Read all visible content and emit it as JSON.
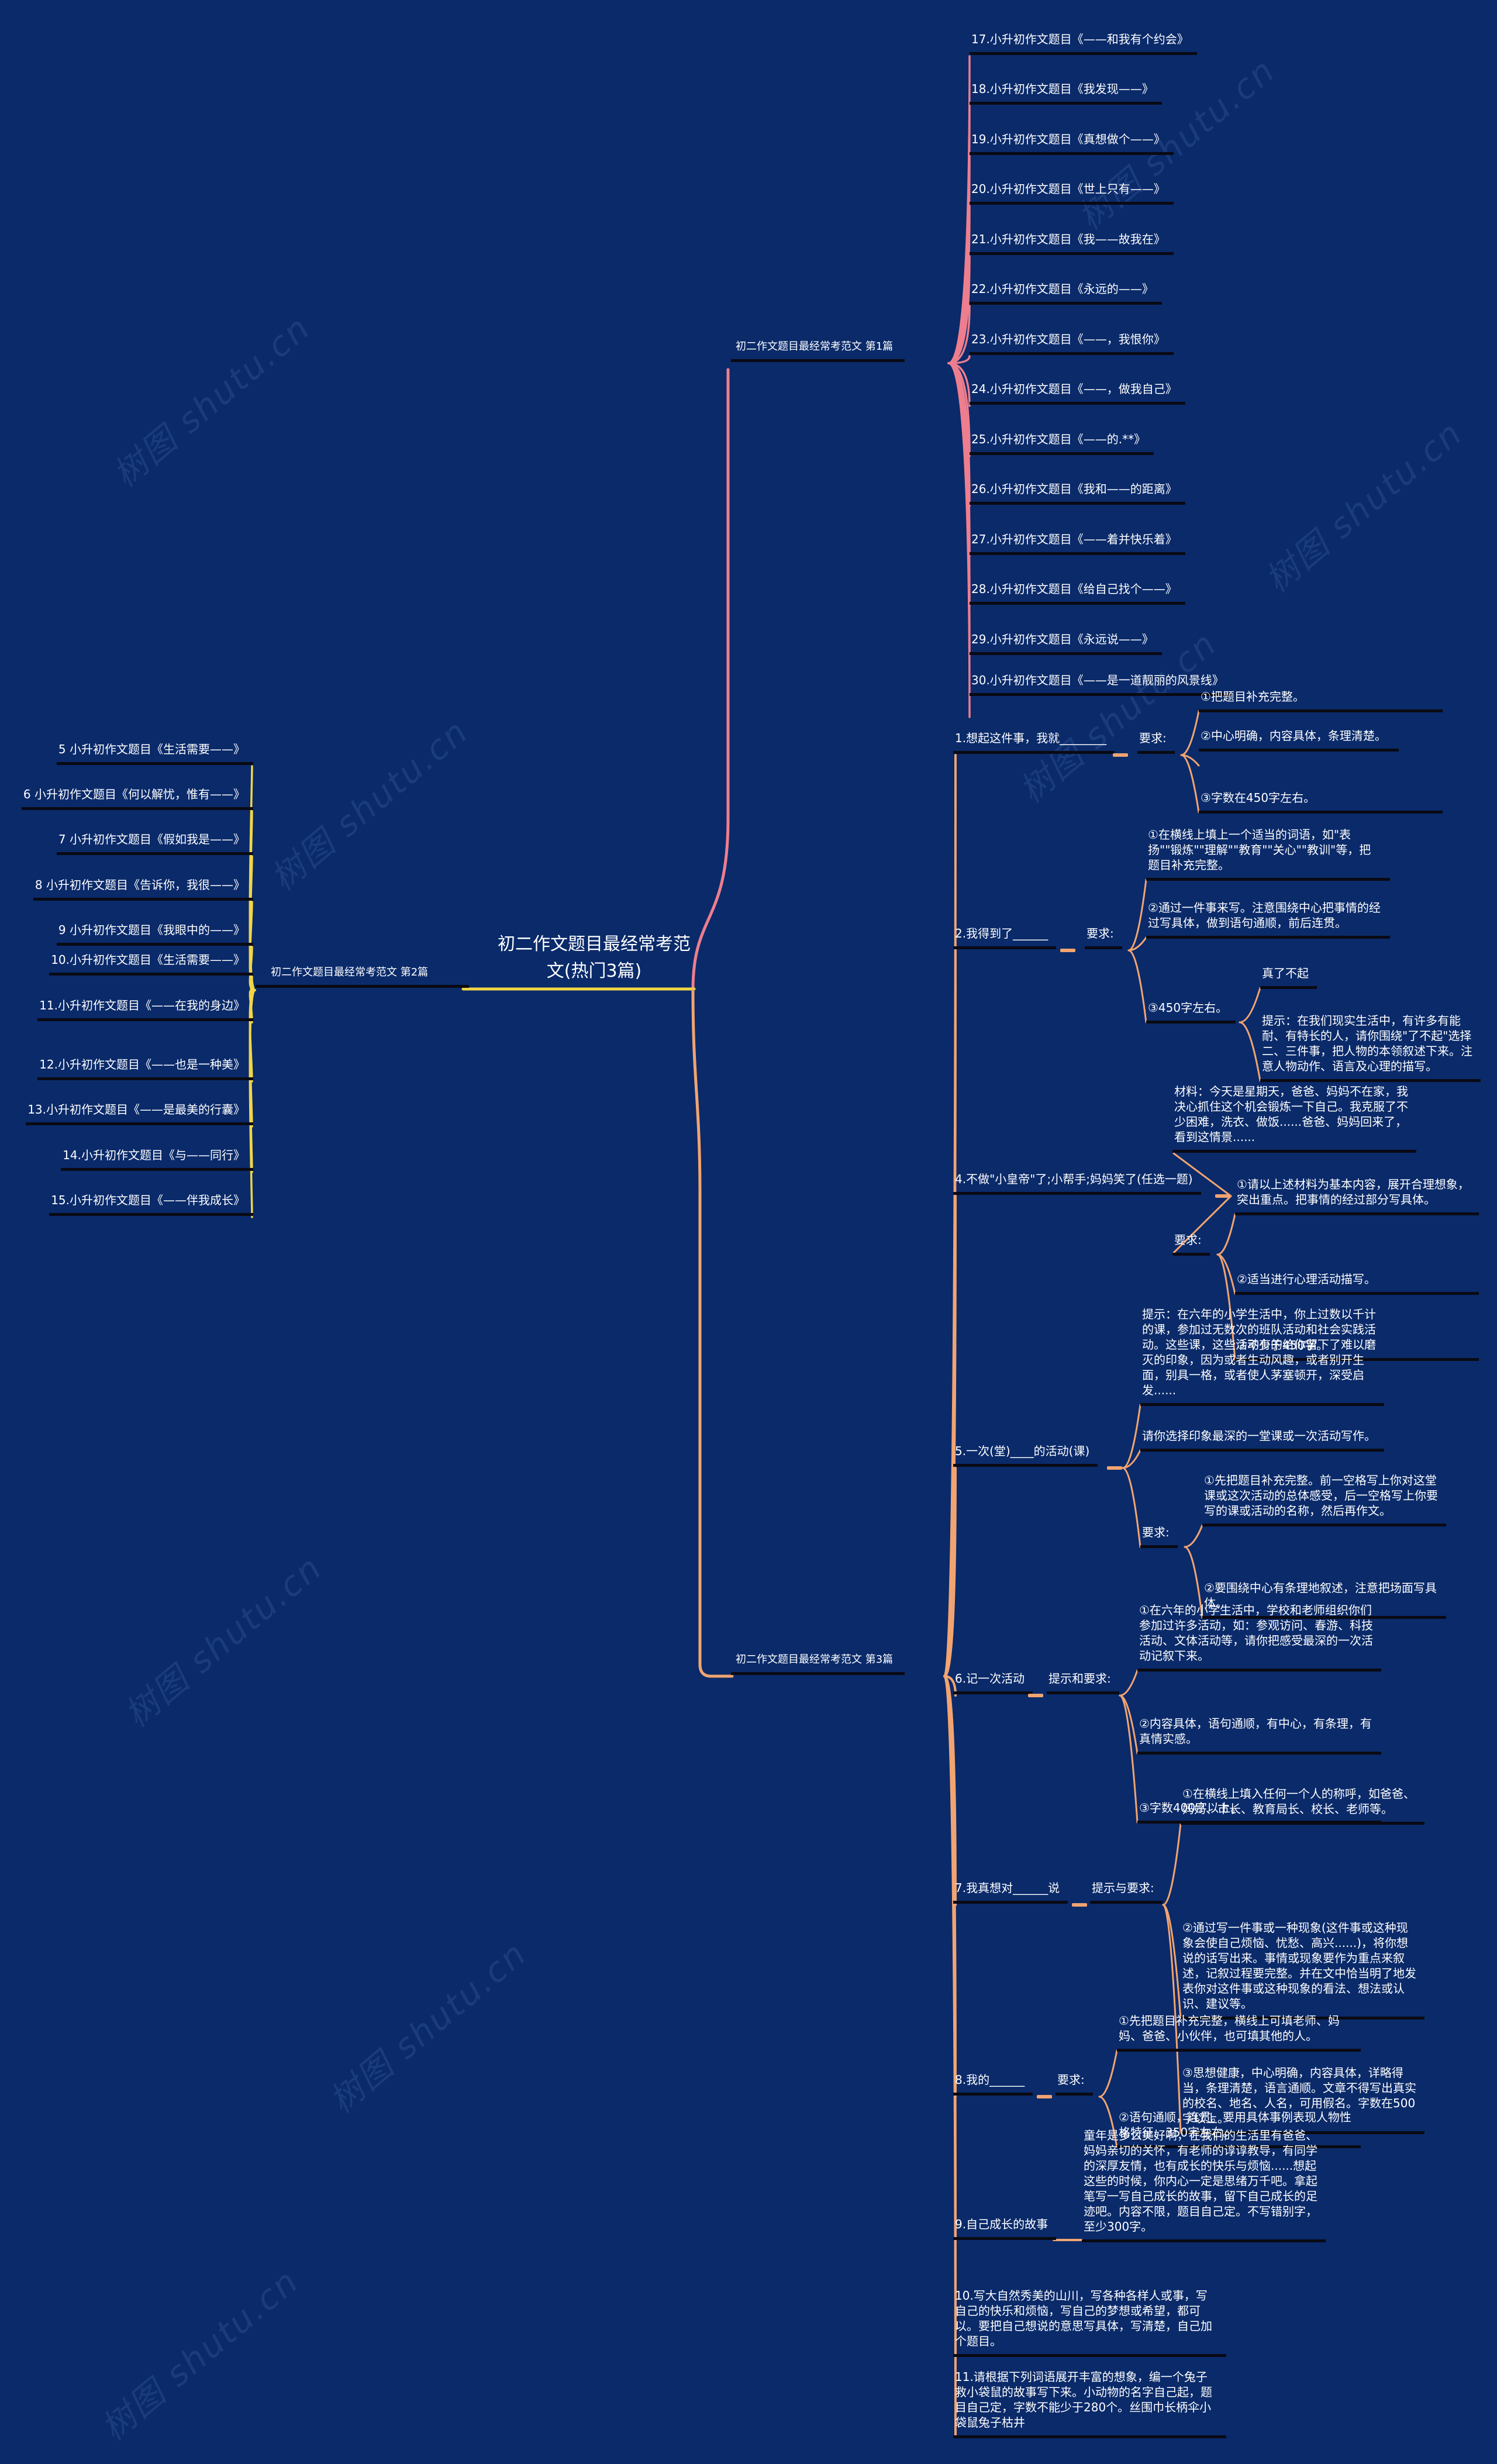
{
  "watermark": "树图 shutu.cn",
  "center_title": "初二作文题目最经常考范文(热门3篇)",
  "branch1": {
    "label": "初二作文题目最经常考范文 第1篇",
    "items": [
      "17.小升初作文题目《——和我有个约会》",
      "18.小升初作文题目《我发现——》",
      "19.小升初作文题目《真想做个——》",
      "20.小升初作文题目《世上只有——》",
      "21.小升初作文题目《我——故我在》",
      "22.小升初作文题目《永远的——》",
      "23.小升初作文题目《——，我恨你》",
      "24.小升初作文题目《——，做我自己》",
      "25.小升初作文题目《——的.**》",
      "26.小升初作文题目《我和——的距离》",
      "27.小升初作文题目《——着并快乐着》",
      "28.小升初作文题目《给自己找个——》",
      "29.小升初作文题目《永远说——》",
      "30.小升初作文题目《——是一道靓丽的风景线》"
    ]
  },
  "branch2": {
    "label": "初二作文题目最经常考范文 第2篇",
    "items": [
      "5 小升初作文题目《生活需要——》",
      "6 小升初作文题目《何以解忧，惟有——》",
      "7 小升初作文题目《假如我是——》",
      "8 小升初作文题目《告诉你，我很——》",
      "9 小升初作文题目《我眼中的——》",
      "10.小升初作文题目《生活需要——》",
      "11.小升初作文题目《——在我的身边》",
      "12.小升初作文题目《——也是一种美》",
      "13.小升初作文题目《——是最美的行囊》",
      "14.小升初作文题目《与——同行》",
      "15.小升初作文题目《——伴我成长》"
    ]
  },
  "branch3": {
    "label": "初二作文题目最经常考范文 第3篇",
    "items": [
      {
        "label": "1.想起这件事，我就________",
        "req": "要求:",
        "subs": [
          "①把题目补充完整。",
          "②中心明确，内容具体，条理清楚。",
          "③字数在450字左右。"
        ]
      },
      {
        "label": "2.我得到了______",
        "req": "要求:",
        "subs": [
          "①在横线上填上一个适当的词语，如\"表扬\"\"锻炼\"\"理解\"\"教育\"\"关心\"\"教训\"等，把题目补充完整。",
          "②通过一件事来写。注意围绕中心把事情的经过写具体，做到语句通顺，前后连贯。",
          "③450字左右。"
        ],
        "extra": [
          "真了不起",
          "提示：在我们现实生活中，有许多有能耐、有特长的人，请你围绕\"了不起\"选择二、三件事，把人物的本领叙述下来。注意人物动作、语言及心理的描写。"
        ]
      },
      {
        "label": "4.不做\"小皇帝\"了;小帮手;妈妈笑了(任选一题)",
        "material": "材料：今天是星期天，爸爸、妈妈不在家，我决心抓住这个机会锻炼一下自己。我克服了不少困难，洗衣、做饭......爸爸、妈妈回来了，看到这情景......",
        "req": "要求:",
        "subs": [
          "①请以上述材料为基本内容，展开合理想象，突出重点。把事情的经过部分写具体。",
          "②适当进行心理活动描写。",
          "③不少于450字。"
        ]
      },
      {
        "label": "5.一次(堂)____的活动(课)",
        "notes": [
          "提示：在六年的小学生活中，你上过数以千计的课，参加过无数次的班队活动和社会实践活动。这些课，这些活动有的给你留下了难以磨灭的印象，因为或者生动风趣，或者别开生面，别具一格，或者使人茅塞顿开，深受启发......",
          "请你选择印象最深的一堂课或一次活动写作。"
        ],
        "req": "要求:",
        "subs": [
          "①先把题目补充完整。前一空格写上你对这堂课或这次活动的总体感受，后一空格写上你要写的课或活动的名称，然后再作文。",
          "②要围绕中心有条理地叙述，注意把场面写具体。"
        ]
      },
      {
        "label": "6.记一次活动",
        "req": "提示和要求:",
        "subs": [
          "①在六年的小学生活中，学校和老师组织你们参加过许多活动，如：参观访问、春游、科技活动、文体活动等，请你把感受最深的一次活动记叙下来。",
          "②内容具体，语句通顺，有中心，有条理，有真情实感。",
          "③字数400字以上。"
        ]
      },
      {
        "label": "7.我真想对______说",
        "req": "提示与要求:",
        "subs": [
          "①在横线上填入任何一个人的称呼，如爸爸、妈妈、市长、教育局长、校长、老师等。",
          "②通过写一件事或一种现象(这件事或这种现象会使自己烦恼、忧愁、高兴......)，将你想说的话写出来。事情或现象要作为重点来叙述，记叙过程要完整。并在文中恰当明了地发表你对这件事或这种现象的看法、想法或认识、建议等。",
          "③思想健康，中心明确，内容具体，详略得当，条理清楚，语言通顺。文章不得写出真实的校名、地名、人名，可用假名。字数在500字以上。"
        ]
      },
      {
        "label": "8.我的______",
        "req": "要求:",
        "subs": [
          "①先把题目补充完整，横线上可填老师、妈妈、爸爸、小伙伴，也可填其他的人。",
          "②语句通顺，连贯。要用具体事例表现人物性格特征。350字左右。"
        ]
      },
      {
        "label": "9.自己成长的故事",
        "note": "童年是多么美好啊，在我们的生活里有爸爸、妈妈亲切的关怀，有老师的谆谆教导，有同学的深厚友情，也有成长的快乐与烦恼......想起这些的时候，你内心一定是思绪万千吧。拿起笔写一写自己成长的故事，留下自己成长的足迹吧。内容不限，题目自己定。不写错别字，至少300字。"
      },
      {
        "label": "10.写大自然秀美的山川，写各种各样人或事，写自己的快乐和烦恼，写自己的梦想或希望，都可以。要把自己想说的意思写具体，写清楚，自己加个题目。"
      },
      {
        "label": "11.请根据下列词语展开丰富的想象，编一个兔子救小袋鼠的故事写下来。小动物的名字自己起，题目自己定，字数不能少于280个。丝围巾长柄伞小袋鼠兔子枯井"
      }
    ]
  },
  "colors": {
    "background": "#0a2a6a",
    "branch1": "#ee7e8e",
    "branch2": "#f1d545",
    "branch3": "#f2a470",
    "underline": "#0a0a14",
    "text": "#ffffff"
  }
}
